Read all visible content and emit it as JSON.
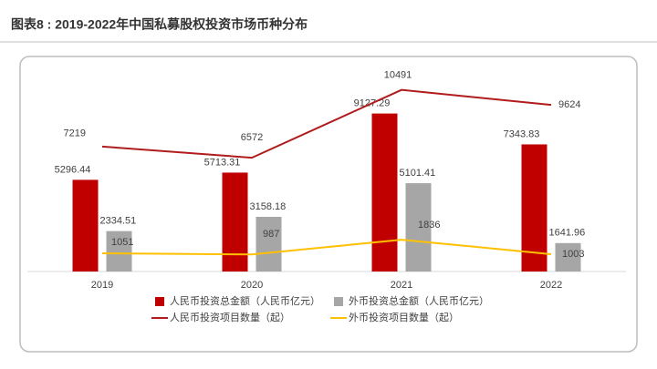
{
  "chart_data": {
    "type": "bar",
    "title": "图表8 : 2019-2022年中国私募股权投资市场币种分布",
    "categories": [
      "2019",
      "2020",
      "2021",
      "2022"
    ],
    "ylim": [
      0,
      10000
    ],
    "y2lim": [
      0,
      10000
    ],
    "series": [
      {
        "name": "人民币投资总金额（人民币亿元）",
        "type": "bar",
        "color": "#c00000",
        "values": [
          5296.44,
          5713.31,
          9127.29,
          7343.83
        ]
      },
      {
        "name": "外币投资总金额（人民币亿元）",
        "type": "bar",
        "color": "#a6a6a6",
        "values": [
          2334.51,
          3158.18,
          5101.41,
          1641.96
        ]
      },
      {
        "name": "人民币投资项目数量（起）",
        "type": "line",
        "axis": "y2",
        "color": "#b01c1c",
        "values": [
          7219,
          6572,
          10491,
          9624
        ]
      },
      {
        "name": "外币投资项目数量（起）",
        "type": "line",
        "axis": "y2",
        "color": "#ffc000",
        "values": [
          1051,
          987,
          1836,
          1003
        ]
      }
    ]
  }
}
